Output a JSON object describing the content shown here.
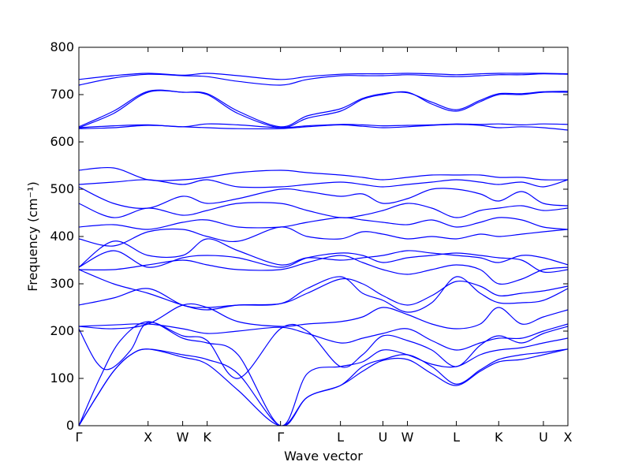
{
  "chart_data": {
    "type": "line",
    "title": "",
    "xlabel": "Wave vector",
    "ylabel": "Frequency (cm⁻¹)",
    "ylim": [
      0,
      800
    ],
    "yticks": [
      0,
      100,
      200,
      300,
      400,
      500,
      600,
      700,
      800
    ],
    "grid": false,
    "legend": "none",
    "line_color": "#0000ff",
    "x_ticks": [
      {
        "label": "Γ",
        "x": 0.0
      },
      {
        "label": "X",
        "x": 1.0
      },
      {
        "label": "W",
        "x": 1.5
      },
      {
        "label": "K",
        "x": 1.854
      },
      {
        "label": "Γ",
        "x": 2.914
      },
      {
        "label": "L",
        "x": 3.78
      },
      {
        "label": "U",
        "x": 4.394
      },
      {
        "label": "W",
        "x": 4.748
      },
      {
        "label": "L",
        "x": 5.455
      },
      {
        "label": "K",
        "x": 6.067
      },
      {
        "label": "U",
        "x": 6.713
      },
      {
        "label": "X",
        "x": 7.067
      }
    ],
    "xlim": [
      0,
      7.067
    ],
    "series": [
      {
        "x": [
          0.0,
          0.25,
          0.5,
          0.75,
          1.0,
          1.5,
          1.854,
          2.3,
          2.914,
          3.3,
          3.78,
          4.1,
          4.394,
          4.748,
          5.1,
          5.455,
          5.8,
          6.067,
          6.4,
          6.713,
          7.067
        ],
        "y": [
          0,
          60,
          115,
          150,
          162,
          145,
          130,
          75,
          0,
          60,
          85,
          115,
          138,
          140,
          110,
          85,
          115,
          135,
          140,
          150,
          162
        ]
      },
      {
        "x": [
          0.0,
          0.25,
          0.5,
          0.75,
          1.0,
          1.5,
          1.854,
          2.3,
          2.914,
          3.3,
          3.78,
          4.1,
          4.394,
          4.748,
          5.1,
          5.455,
          5.8,
          6.067,
          6.4,
          6.713,
          7.067
        ],
        "y": [
          0,
          60,
          115,
          150,
          162,
          150,
          140,
          110,
          0,
          60,
          85,
          125,
          140,
          150,
          125,
          88,
          118,
          140,
          150,
          155,
          162
        ]
      },
      {
        "x": [
          0.0,
          0.3,
          0.6,
          1.0,
          1.5,
          1.854,
          2.3,
          2.914,
          3.3,
          3.78,
          4.1,
          4.394,
          4.748,
          5.1,
          5.455,
          5.8,
          6.067,
          6.4,
          6.713,
          7.067
        ],
        "y": [
          0,
          100,
          180,
          220,
          185,
          175,
          150,
          0,
          110,
          125,
          135,
          160,
          150,
          130,
          125,
          150,
          160,
          165,
          175,
          185
        ]
      },
      {
        "x": [
          0.0,
          0.25,
          0.45,
          0.75,
          1.0,
          1.5,
          1.854,
          2.3,
          2.914,
          3.3,
          3.78,
          4.1,
          4.394,
          4.748,
          5.1,
          5.455,
          5.8,
          6.067,
          6.4,
          6.713,
          7.067
        ],
        "y": [
          205,
          135,
          120,
          160,
          218,
          190,
          180,
          100,
          205,
          200,
          125,
          150,
          190,
          180,
          160,
          125,
          170,
          190,
          175,
          195,
          210
        ]
      },
      {
        "x": [
          0.0,
          0.5,
          1.0,
          1.5,
          1.854,
          2.3,
          2.914,
          3.3,
          3.78,
          4.1,
          4.394,
          4.748,
          5.1,
          5.455,
          5.8,
          6.067,
          6.4,
          6.713,
          7.067
        ],
        "y": [
          210,
          213,
          215,
          205,
          195,
          200,
          208,
          195,
          175,
          185,
          195,
          205,
          180,
          160,
          175,
          185,
          185,
          200,
          215
        ]
      },
      {
        "x": [
          0.0,
          0.5,
          1.0,
          1.5,
          1.854,
          2.3,
          2.914,
          3.3,
          3.78,
          4.1,
          4.394,
          4.748,
          5.1,
          5.455,
          5.8,
          6.067,
          6.4,
          6.713,
          7.067
        ],
        "y": [
          210,
          205,
          215,
          255,
          250,
          220,
          210,
          215,
          220,
          230,
          250,
          235,
          215,
          205,
          215,
          250,
          215,
          230,
          245
        ]
      },
      {
        "x": [
          0.0,
          0.5,
          1.0,
          1.5,
          1.854,
          2.3,
          2.914,
          3.3,
          3.78,
          4.1,
          4.394,
          4.748,
          5.1,
          5.455,
          5.8,
          6.067,
          6.4,
          6.713,
          7.067
        ],
        "y": [
          255,
          270,
          290,
          255,
          250,
          255,
          258,
          290,
          315,
          280,
          265,
          240,
          260,
          315,
          280,
          260,
          260,
          265,
          290
        ]
      },
      {
        "x": [
          0.0,
          0.5,
          1.0,
          1.5,
          1.854,
          2.3,
          2.914,
          3.3,
          3.78,
          4.1,
          4.394,
          4.748,
          5.1,
          5.455,
          5.8,
          6.067,
          6.4,
          6.713,
          7.067
        ],
        "y": [
          330,
          300,
          280,
          255,
          245,
          255,
          258,
          280,
          310,
          300,
          275,
          255,
          275,
          305,
          295,
          275,
          280,
          285,
          295
        ]
      },
      {
        "x": [
          0.0,
          0.5,
          1.0,
          1.5,
          1.854,
          2.3,
          2.914,
          3.3,
          3.78,
          4.1,
          4.394,
          4.748,
          5.1,
          5.455,
          5.8,
          6.067,
          6.4,
          6.713,
          7.067
        ],
        "y": [
          330,
          330,
          340,
          350,
          340,
          330,
          330,
          345,
          360,
          345,
          330,
          320,
          330,
          340,
          330,
          300,
          310,
          330,
          335
        ]
      },
      {
        "x": [
          0.0,
          0.5,
          1.0,
          1.5,
          1.854,
          2.3,
          2.914,
          3.3,
          3.78,
          4.1,
          4.394,
          4.748,
          5.1,
          5.455,
          5.8,
          6.067,
          6.4,
          6.713,
          7.067
        ],
        "y": [
          335,
          370,
          335,
          355,
          360,
          355,
          335,
          355,
          365,
          360,
          345,
          355,
          360,
          365,
          360,
          355,
          350,
          325,
          330
        ]
      },
      {
        "x": [
          0.0,
          0.5,
          1.0,
          1.5,
          1.854,
          2.3,
          2.914,
          3.3,
          3.78,
          4.1,
          4.394,
          4.748,
          5.1,
          5.455,
          5.8,
          6.067,
          6.4,
          6.713,
          7.067
        ],
        "y": [
          335,
          390,
          360,
          360,
          395,
          370,
          340,
          355,
          350,
          355,
          360,
          370,
          365,
          360,
          355,
          345,
          360,
          355,
          340
        ]
      },
      {
        "x": [
          0.0,
          0.5,
          1.0,
          1.5,
          1.854,
          2.3,
          2.914,
          3.3,
          3.78,
          4.1,
          4.394,
          4.748,
          5.1,
          5.455,
          5.8,
          6.067,
          6.4,
          6.713,
          7.067
        ],
        "y": [
          395,
          380,
          410,
          415,
          400,
          390,
          420,
          400,
          395,
          410,
          405,
          395,
          400,
          395,
          405,
          400,
          405,
          410,
          415
        ]
      },
      {
        "x": [
          0.0,
          0.5,
          1.0,
          1.5,
          1.854,
          2.3,
          2.914,
          3.3,
          3.78,
          4.1,
          4.394,
          4.748,
          5.1,
          5.455,
          5.8,
          6.067,
          6.4,
          6.713,
          7.067
        ],
        "y": [
          420,
          425,
          415,
          430,
          435,
          420,
          420,
          430,
          440,
          435,
          430,
          425,
          435,
          420,
          430,
          440,
          435,
          420,
          415
        ]
      },
      {
        "x": [
          0.0,
          0.5,
          1.0,
          1.5,
          1.854,
          2.3,
          2.914,
          3.3,
          3.78,
          4.1,
          4.394,
          4.748,
          5.1,
          5.455,
          5.8,
          6.067,
          6.4,
          6.713,
          7.067
        ],
        "y": [
          470,
          440,
          460,
          445,
          455,
          470,
          470,
          455,
          440,
          445,
          455,
          470,
          460,
          440,
          455,
          460,
          465,
          455,
          460
        ]
      },
      {
        "x": [
          0.0,
          0.5,
          1.0,
          1.5,
          1.854,
          2.3,
          2.914,
          3.3,
          3.78,
          4.1,
          4.394,
          4.748,
          5.1,
          5.455,
          5.8,
          6.067,
          6.4,
          6.713,
          7.067
        ],
        "y": [
          505,
          470,
          460,
          485,
          470,
          480,
          500,
          495,
          485,
          490,
          470,
          480,
          500,
          500,
          490,
          475,
          495,
          470,
          465
        ]
      },
      {
        "x": [
          0.0,
          0.5,
          1.0,
          1.5,
          1.854,
          2.3,
          2.914,
          3.3,
          3.78,
          4.1,
          4.394,
          4.748,
          5.1,
          5.455,
          5.8,
          6.067,
          6.4,
          6.713,
          7.067
        ],
        "y": [
          510,
          515,
          520,
          510,
          520,
          505,
          505,
          510,
          515,
          510,
          505,
          510,
          515,
          520,
          515,
          510,
          515,
          505,
          520
        ]
      },
      {
        "x": [
          0.0,
          0.5,
          1.0,
          1.5,
          1.854,
          2.3,
          2.914,
          3.3,
          3.78,
          4.1,
          4.394,
          4.748,
          5.1,
          5.455,
          5.8,
          6.067,
          6.4,
          6.713,
          7.067
        ],
        "y": [
          540,
          545,
          520,
          520,
          525,
          535,
          540,
          535,
          530,
          525,
          520,
          525,
          530,
          530,
          530,
          525,
          525,
          520,
          520
        ]
      },
      {
        "x": [
          0.0,
          0.5,
          1.0,
          1.5,
          1.854,
          2.3,
          2.914,
          3.3,
          3.78,
          4.1,
          4.394,
          4.748,
          5.1,
          5.455,
          5.8,
          6.067,
          6.4,
          6.713,
          7.067
        ],
        "y": [
          628,
          630,
          635,
          632,
          630,
          628,
          628,
          632,
          636,
          633,
          630,
          632,
          635,
          637,
          635,
          630,
          632,
          630,
          625
        ]
      },
      {
        "x": [
          0.0,
          0.5,
          1.0,
          1.5,
          1.854,
          2.3,
          2.914,
          3.3,
          3.78,
          4.1,
          4.394,
          4.748,
          5.1,
          5.455,
          5.8,
          6.067,
          6.4,
          6.713,
          7.067
        ],
        "y": [
          630,
          634,
          636,
          632,
          638,
          636,
          630,
          634,
          637,
          636,
          634,
          635,
          636,
          638,
          637,
          638,
          636,
          638,
          637
        ]
      },
      {
        "x": [
          0.0,
          0.5,
          1.0,
          1.5,
          1.854,
          2.3,
          2.914,
          3.3,
          3.78,
          4.1,
          4.394,
          4.748,
          5.1,
          5.455,
          5.8,
          6.067,
          6.4,
          6.713,
          7.067
        ],
        "y": [
          630,
          660,
          705,
          705,
          700,
          660,
          630,
          650,
          665,
          690,
          700,
          705,
          680,
          665,
          685,
          700,
          700,
          705,
          705
        ]
      },
      {
        "x": [
          0.0,
          0.5,
          1.0,
          1.5,
          1.854,
          2.3,
          2.914,
          3.3,
          3.78,
          4.1,
          4.394,
          4.748,
          5.1,
          5.455,
          5.8,
          6.067,
          6.4,
          6.713,
          7.067
        ],
        "y": [
          632,
          665,
          707,
          705,
          702,
          665,
          632,
          655,
          670,
          692,
          702,
          704,
          684,
          668,
          688,
          702,
          702,
          706,
          707
        ]
      },
      {
        "x": [
          0.0,
          0.5,
          1.0,
          1.5,
          1.854,
          2.3,
          2.914,
          3.3,
          3.78,
          4.1,
          4.394,
          4.748,
          5.1,
          5.455,
          5.8,
          6.067,
          6.4,
          6.713,
          7.067
        ],
        "y": [
          720,
          735,
          743,
          740,
          738,
          728,
          720,
          732,
          740,
          740,
          740,
          742,
          740,
          738,
          740,
          742,
          742,
          744,
          743
        ]
      },
      {
        "x": [
          0.0,
          0.5,
          1.0,
          1.5,
          1.854,
          2.3,
          2.914,
          3.3,
          3.78,
          4.1,
          4.394,
          4.748,
          5.1,
          5.455,
          5.8,
          6.067,
          6.4,
          6.713,
          7.067
        ],
        "y": [
          732,
          740,
          745,
          741,
          745,
          740,
          732,
          738,
          743,
          744,
          744,
          745,
          744,
          742,
          744,
          745,
          745,
          745,
          744
        ]
      }
    ]
  }
}
